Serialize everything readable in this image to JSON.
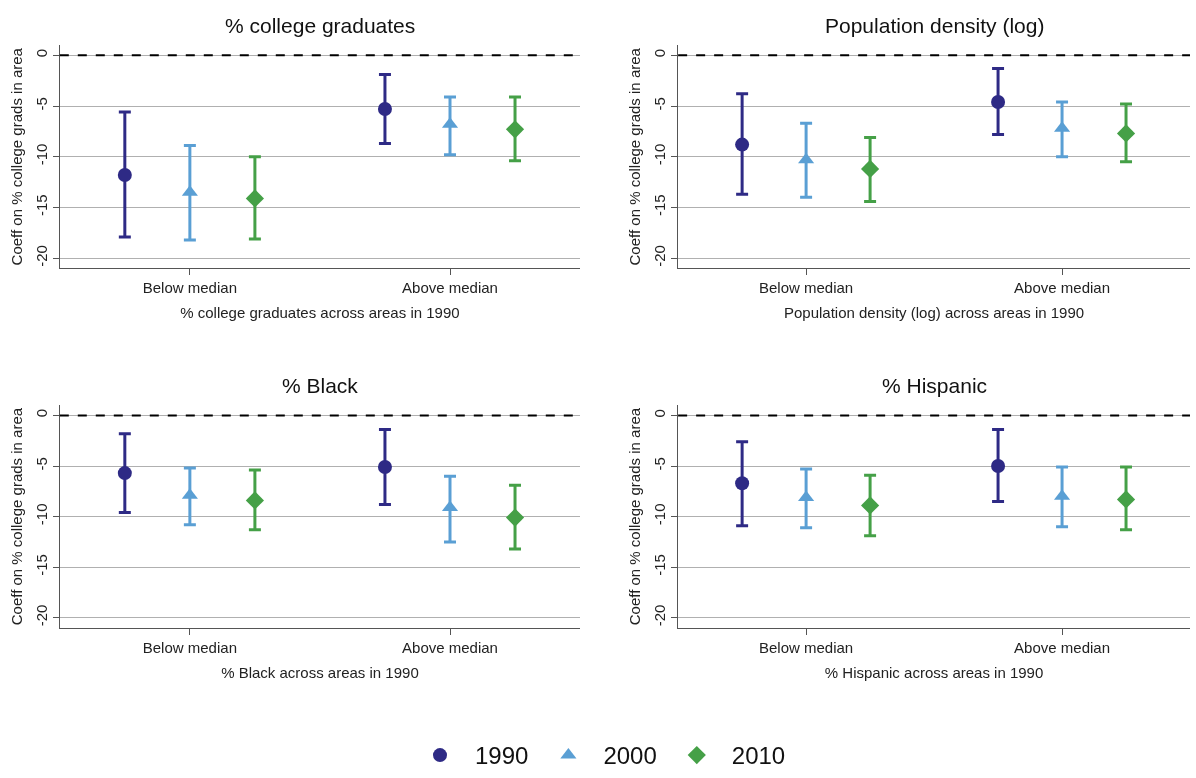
{
  "chart_data": [
    {
      "type": "scatter",
      "title": "% college graduates",
      "xlabel": "% college graduates across areas in 1990",
      "ylabel": "Coeff on % college grads in area",
      "categories": [
        "Below median",
        "Above median"
      ],
      "ylim": [
        -21,
        1
      ],
      "yticks": [
        0,
        -5,
        -10,
        -15,
        -20
      ],
      "grid": "y",
      "legend": "bottom",
      "ref_lines": [
        {
          "axis": "y",
          "value": 0,
          "color": "#000000",
          "line_style": "dashed"
        }
      ],
      "series": [
        {
          "name": "1990",
          "color": "#2e2a85",
          "marker": "circle",
          "values": [
            -11.8,
            -5.3
          ],
          "errors": [
            [
              -17.9,
              -5.6
            ],
            [
              -8.7,
              -1.9
            ]
          ]
        },
        {
          "name": "2000",
          "color": "#5a9fd4",
          "marker": "triangle",
          "values": [
            -13.5,
            -6.8
          ],
          "errors": [
            [
              -18.2,
              -8.9
            ],
            [
              -9.8,
              -4.1
            ]
          ]
        },
        {
          "name": "2010",
          "color": "#45a047",
          "marker": "diamond",
          "values": [
            -14.1,
            -7.3
          ],
          "errors": [
            [
              -18.1,
              -10.0
            ],
            [
              -10.4,
              -4.1
            ]
          ]
        }
      ]
    },
    {
      "type": "scatter",
      "title": "Population density (log)",
      "xlabel": "Population density (log) across areas in 1990",
      "ylabel": "Coeff on % college grads in area",
      "categories": [
        "Below median",
        "Above median"
      ],
      "ylim": [
        -21,
        1
      ],
      "yticks": [
        0,
        -5,
        -10,
        -15,
        -20
      ],
      "grid": "y",
      "ref_lines": [
        {
          "axis": "y",
          "value": 0,
          "color": "#000000",
          "line_style": "dashed"
        }
      ],
      "series": [
        {
          "name": "1990",
          "color": "#2e2a85",
          "marker": "circle",
          "values": [
            -8.8,
            -4.6
          ],
          "errors": [
            [
              -13.7,
              -3.8
            ],
            [
              -7.8,
              -1.3
            ]
          ]
        },
        {
          "name": "2000",
          "color": "#5a9fd4",
          "marker": "triangle",
          "values": [
            -10.3,
            -7.2
          ],
          "errors": [
            [
              -14.0,
              -6.7
            ],
            [
              -10.0,
              -4.6
            ]
          ]
        },
        {
          "name": "2010",
          "color": "#45a047",
          "marker": "diamond",
          "values": [
            -11.2,
            -7.7
          ],
          "errors": [
            [
              -14.4,
              -8.1
            ],
            [
              -10.5,
              -4.8
            ]
          ]
        }
      ]
    },
    {
      "type": "scatter",
      "title": "% Black",
      "xlabel": "% Black across areas in 1990",
      "ylabel": "Coeff on % college grads in area",
      "categories": [
        "Below median",
        "Above median"
      ],
      "ylim": [
        -21,
        1
      ],
      "yticks": [
        0,
        -5,
        -10,
        -15,
        -20
      ],
      "grid": "y",
      "ref_lines": [
        {
          "axis": "y",
          "value": 0,
          "color": "#000000",
          "line_style": "dashed"
        }
      ],
      "series": [
        {
          "name": "1990",
          "color": "#2e2a85",
          "marker": "circle",
          "values": [
            -5.7,
            -5.1
          ],
          "errors": [
            [
              -9.6,
              -1.8
            ],
            [
              -8.8,
              -1.4
            ]
          ]
        },
        {
          "name": "2000",
          "color": "#5a9fd4",
          "marker": "triangle",
          "values": [
            -7.9,
            -9.1
          ],
          "errors": [
            [
              -10.8,
              -5.2
            ],
            [
              -12.5,
              -6.0
            ]
          ]
        },
        {
          "name": "2010",
          "color": "#45a047",
          "marker": "diamond",
          "values": [
            -8.4,
            -10.1
          ],
          "errors": [
            [
              -11.3,
              -5.4
            ],
            [
              -13.2,
              -6.9
            ]
          ]
        }
      ]
    },
    {
      "type": "scatter",
      "title": "% Hispanic",
      "xlabel": "% Hispanic across areas in 1990",
      "ylabel": "Coeff on % college grads in area",
      "categories": [
        "Below median",
        "Above median"
      ],
      "ylim": [
        -21,
        1
      ],
      "yticks": [
        0,
        -5,
        -10,
        -15,
        -20
      ],
      "grid": "y",
      "ref_lines": [
        {
          "axis": "y",
          "value": 0,
          "color": "#000000",
          "line_style": "dashed"
        }
      ],
      "series": [
        {
          "name": "1990",
          "color": "#2e2a85",
          "marker": "circle",
          "values": [
            -6.7,
            -5.0
          ],
          "errors": [
            [
              -10.9,
              -2.6
            ],
            [
              -8.5,
              -1.4
            ]
          ]
        },
        {
          "name": "2000",
          "color": "#5a9fd4",
          "marker": "triangle",
          "values": [
            -8.1,
            -8.0
          ],
          "errors": [
            [
              -11.1,
              -5.3
            ],
            [
              -11.0,
              -5.1
            ]
          ]
        },
        {
          "name": "2010",
          "color": "#45a047",
          "marker": "diamond",
          "values": [
            -8.9,
            -8.3
          ],
          "errors": [
            [
              -11.9,
              -5.9
            ],
            [
              -11.3,
              -5.1
            ]
          ]
        }
      ]
    }
  ]
}
